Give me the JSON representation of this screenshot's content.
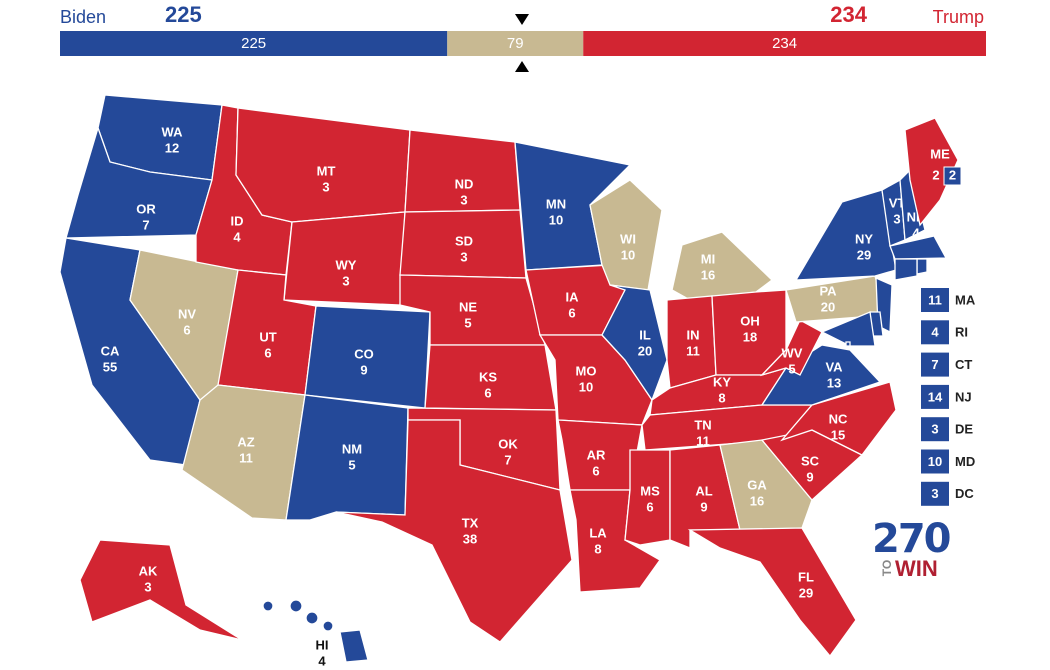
{
  "header": {
    "left": {
      "name": "Biden",
      "total": 225,
      "color": "#244999"
    },
    "right": {
      "name": "Trump",
      "total": 234,
      "color": "#d22532"
    }
  },
  "bar": [
    {
      "value": 225,
      "color": "#244999"
    },
    {
      "value": 79,
      "color": "#c8b992"
    },
    {
      "value": 234,
      "color": "#d22532"
    }
  ],
  "states": [
    {
      "abbr": "WA",
      "votes": 12,
      "color": "#244999"
    },
    {
      "abbr": "OR",
      "votes": 7,
      "color": "#244999"
    },
    {
      "abbr": "CA",
      "votes": 55,
      "color": "#244999"
    },
    {
      "abbr": "NV",
      "votes": 6,
      "color": "#c8b992"
    },
    {
      "abbr": "ID",
      "votes": 4,
      "color": "#d22532"
    },
    {
      "abbr": "MT",
      "votes": 3,
      "color": "#d22532"
    },
    {
      "abbr": "WY",
      "votes": 3,
      "color": "#d22532"
    },
    {
      "abbr": "UT",
      "votes": 6,
      "color": "#d22532"
    },
    {
      "abbr": "CO",
      "votes": 9,
      "color": "#244999"
    },
    {
      "abbr": "AZ",
      "votes": 11,
      "color": "#c8b992"
    },
    {
      "abbr": "NM",
      "votes": 5,
      "color": "#244999"
    },
    {
      "abbr": "ND",
      "votes": 3,
      "color": "#d22532"
    },
    {
      "abbr": "SD",
      "votes": 3,
      "color": "#d22532"
    },
    {
      "abbr": "NE",
      "votes": 5,
      "color": "#d22532"
    },
    {
      "abbr": "KS",
      "votes": 6,
      "color": "#d22532"
    },
    {
      "abbr": "OK",
      "votes": 7,
      "color": "#d22532"
    },
    {
      "abbr": "TX",
      "votes": 38,
      "color": "#d22532"
    },
    {
      "abbr": "MN",
      "votes": 10,
      "color": "#244999"
    },
    {
      "abbr": "IA",
      "votes": 6,
      "color": "#d22532"
    },
    {
      "abbr": "MO",
      "votes": 10,
      "color": "#d22532"
    },
    {
      "abbr": "AR",
      "votes": 6,
      "color": "#d22532"
    },
    {
      "abbr": "LA",
      "votes": 8,
      "color": "#d22532"
    },
    {
      "abbr": "WI",
      "votes": 10,
      "color": "#c8b992"
    },
    {
      "abbr": "IL",
      "votes": 20,
      "color": "#244999"
    },
    {
      "abbr": "MI",
      "votes": 16,
      "color": "#c8b992"
    },
    {
      "abbr": "IN",
      "votes": 11,
      "color": "#d22532"
    },
    {
      "abbr": "OH",
      "votes": 18,
      "color": "#d22532"
    },
    {
      "abbr": "KY",
      "votes": 8,
      "color": "#d22532"
    },
    {
      "abbr": "TN",
      "votes": 11,
      "color": "#d22532"
    },
    {
      "abbr": "MS",
      "votes": 6,
      "color": "#d22532"
    },
    {
      "abbr": "AL",
      "votes": 9,
      "color": "#d22532"
    },
    {
      "abbr": "GA",
      "votes": 16,
      "color": "#c8b992"
    },
    {
      "abbr": "FL",
      "votes": 29,
      "color": "#d22532"
    },
    {
      "abbr": "SC",
      "votes": 9,
      "color": "#d22532"
    },
    {
      "abbr": "NC",
      "votes": 15,
      "color": "#d22532"
    },
    {
      "abbr": "VA",
      "votes": 13,
      "color": "#244999"
    },
    {
      "abbr": "WV",
      "votes": 5,
      "color": "#d22532"
    },
    {
      "abbr": "PA",
      "votes": 20,
      "color": "#c8b992"
    },
    {
      "abbr": "NY",
      "votes": 29,
      "color": "#244999"
    },
    {
      "abbr": "VT",
      "votes": 3,
      "color": "#244999"
    },
    {
      "abbr": "NH",
      "votes": 4,
      "color": "#244999"
    },
    {
      "abbr": "ME",
      "votes": 2,
      "color": "#d22532",
      "split_votes": 2,
      "split_color": "#244999"
    },
    {
      "abbr": "MA",
      "votes": 11,
      "color": "#244999"
    },
    {
      "abbr": "RI",
      "votes": 4,
      "color": "#244999"
    },
    {
      "abbr": "CT",
      "votes": 7,
      "color": "#244999"
    },
    {
      "abbr": "NJ",
      "votes": 14,
      "color": "#244999"
    },
    {
      "abbr": "DE",
      "votes": 3,
      "color": "#244999"
    },
    {
      "abbr": "MD",
      "votes": 10,
      "color": "#244999"
    },
    {
      "abbr": "DC",
      "votes": 3,
      "color": "#244999"
    },
    {
      "abbr": "AK",
      "votes": 3,
      "color": "#d22532"
    },
    {
      "abbr": "HI",
      "votes": 4,
      "color": "#244999"
    }
  ],
  "logo": {
    "number": "270",
    "small": "TO",
    "word": "WIN"
  }
}
